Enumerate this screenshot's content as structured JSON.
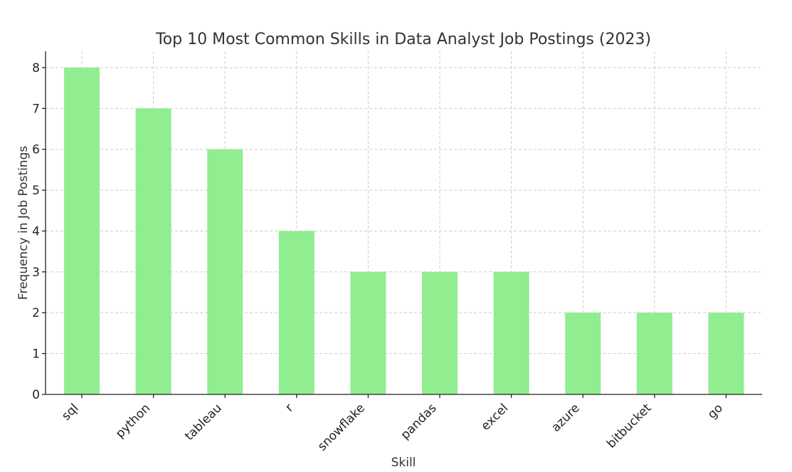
{
  "chart_data": {
    "type": "bar",
    "title": "Top 10 Most Common Skills in Data Analyst Job Postings (2023)",
    "xlabel": "Skill",
    "ylabel": "Frequency in Job Postings",
    "categories": [
      "sql",
      "python",
      "tableau",
      "r",
      "snowflake",
      "pandas",
      "excel",
      "azure",
      "bitbucket",
      "go"
    ],
    "values": [
      8,
      7,
      6,
      4,
      3,
      3,
      3,
      2,
      2,
      2
    ],
    "ylim": [
      0,
      8.4
    ],
    "yticks": [
      0,
      1,
      2,
      3,
      4,
      5,
      6,
      7,
      8
    ],
    "grid": true,
    "bar_color": "#90ee90",
    "x_tick_rotation": 45
  }
}
